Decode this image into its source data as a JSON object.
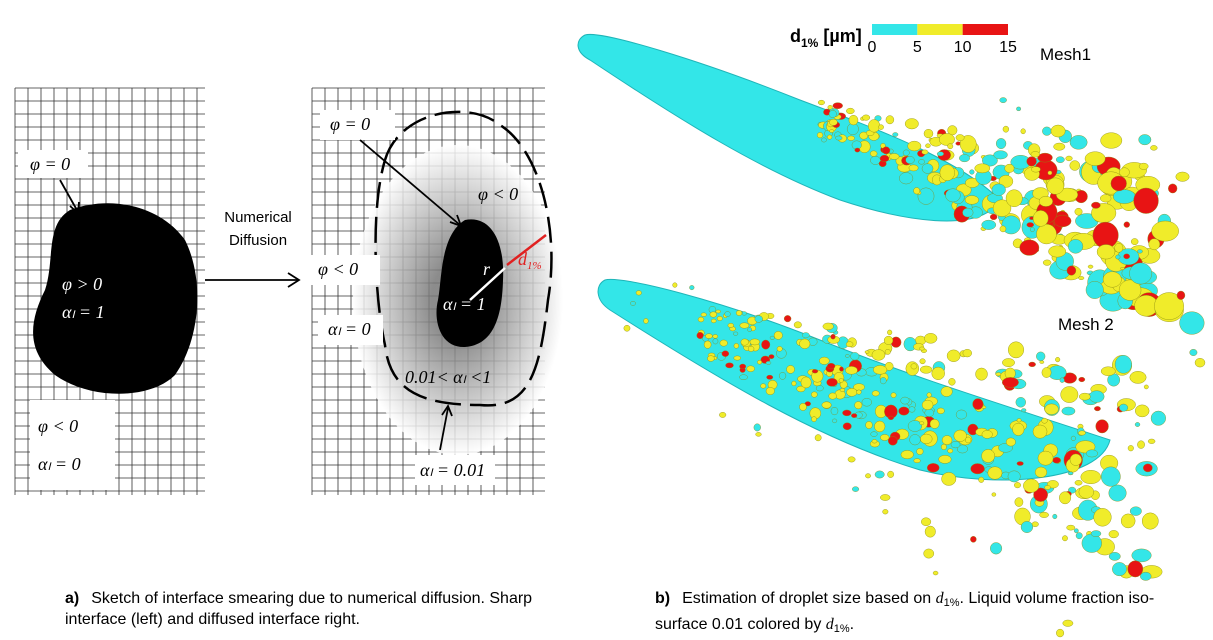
{
  "sketch_left": {
    "phi_zero": "φ = 0",
    "phi_pos": "φ > 0",
    "alpha_one": "αₗ = 1",
    "phi_neg": "φ < 0",
    "alpha_zero": "αₗ = 0"
  },
  "arrow_label": [
    "Numerical",
    "Diffusion"
  ],
  "sketch_right": {
    "phi_zero": "φ = 0",
    "phi_neg_inner": "φ < 0",
    "phi_neg_outer": "φ < 0",
    "r": "r",
    "d": "d",
    "d_sub": "1%",
    "alpha_one": "αₗ = 1",
    "alpha_zero": "αₗ = 0",
    "alpha_mid": "0.01< αₗ <1",
    "alpha_edge": "αₗ = 0.01"
  },
  "colorbar": {
    "label": "d",
    "label_sub": "1%",
    "label_unit": " [µm]",
    "ticks": [
      0,
      5,
      10,
      15
    ],
    "colors": [
      "#33e6e8",
      "#f0ec2a",
      "#e81414"
    ]
  },
  "mesh_labels": [
    "Mesh1",
    "Mesh 2"
  ],
  "caption_a": {
    "label": "a)",
    "text": "Sketch of  interface smearing due to numerical diffusion. Sharp interface (left) and diffused interface right."
  },
  "caption_b": {
    "label": "b)",
    "parts": [
      "Estimation of droplet size based on ",
      "d",
      "1%",
      ". Liquid volume fraction iso-surface 0.01 colored by ",
      "d",
      "1%",
      "."
    ]
  }
}
